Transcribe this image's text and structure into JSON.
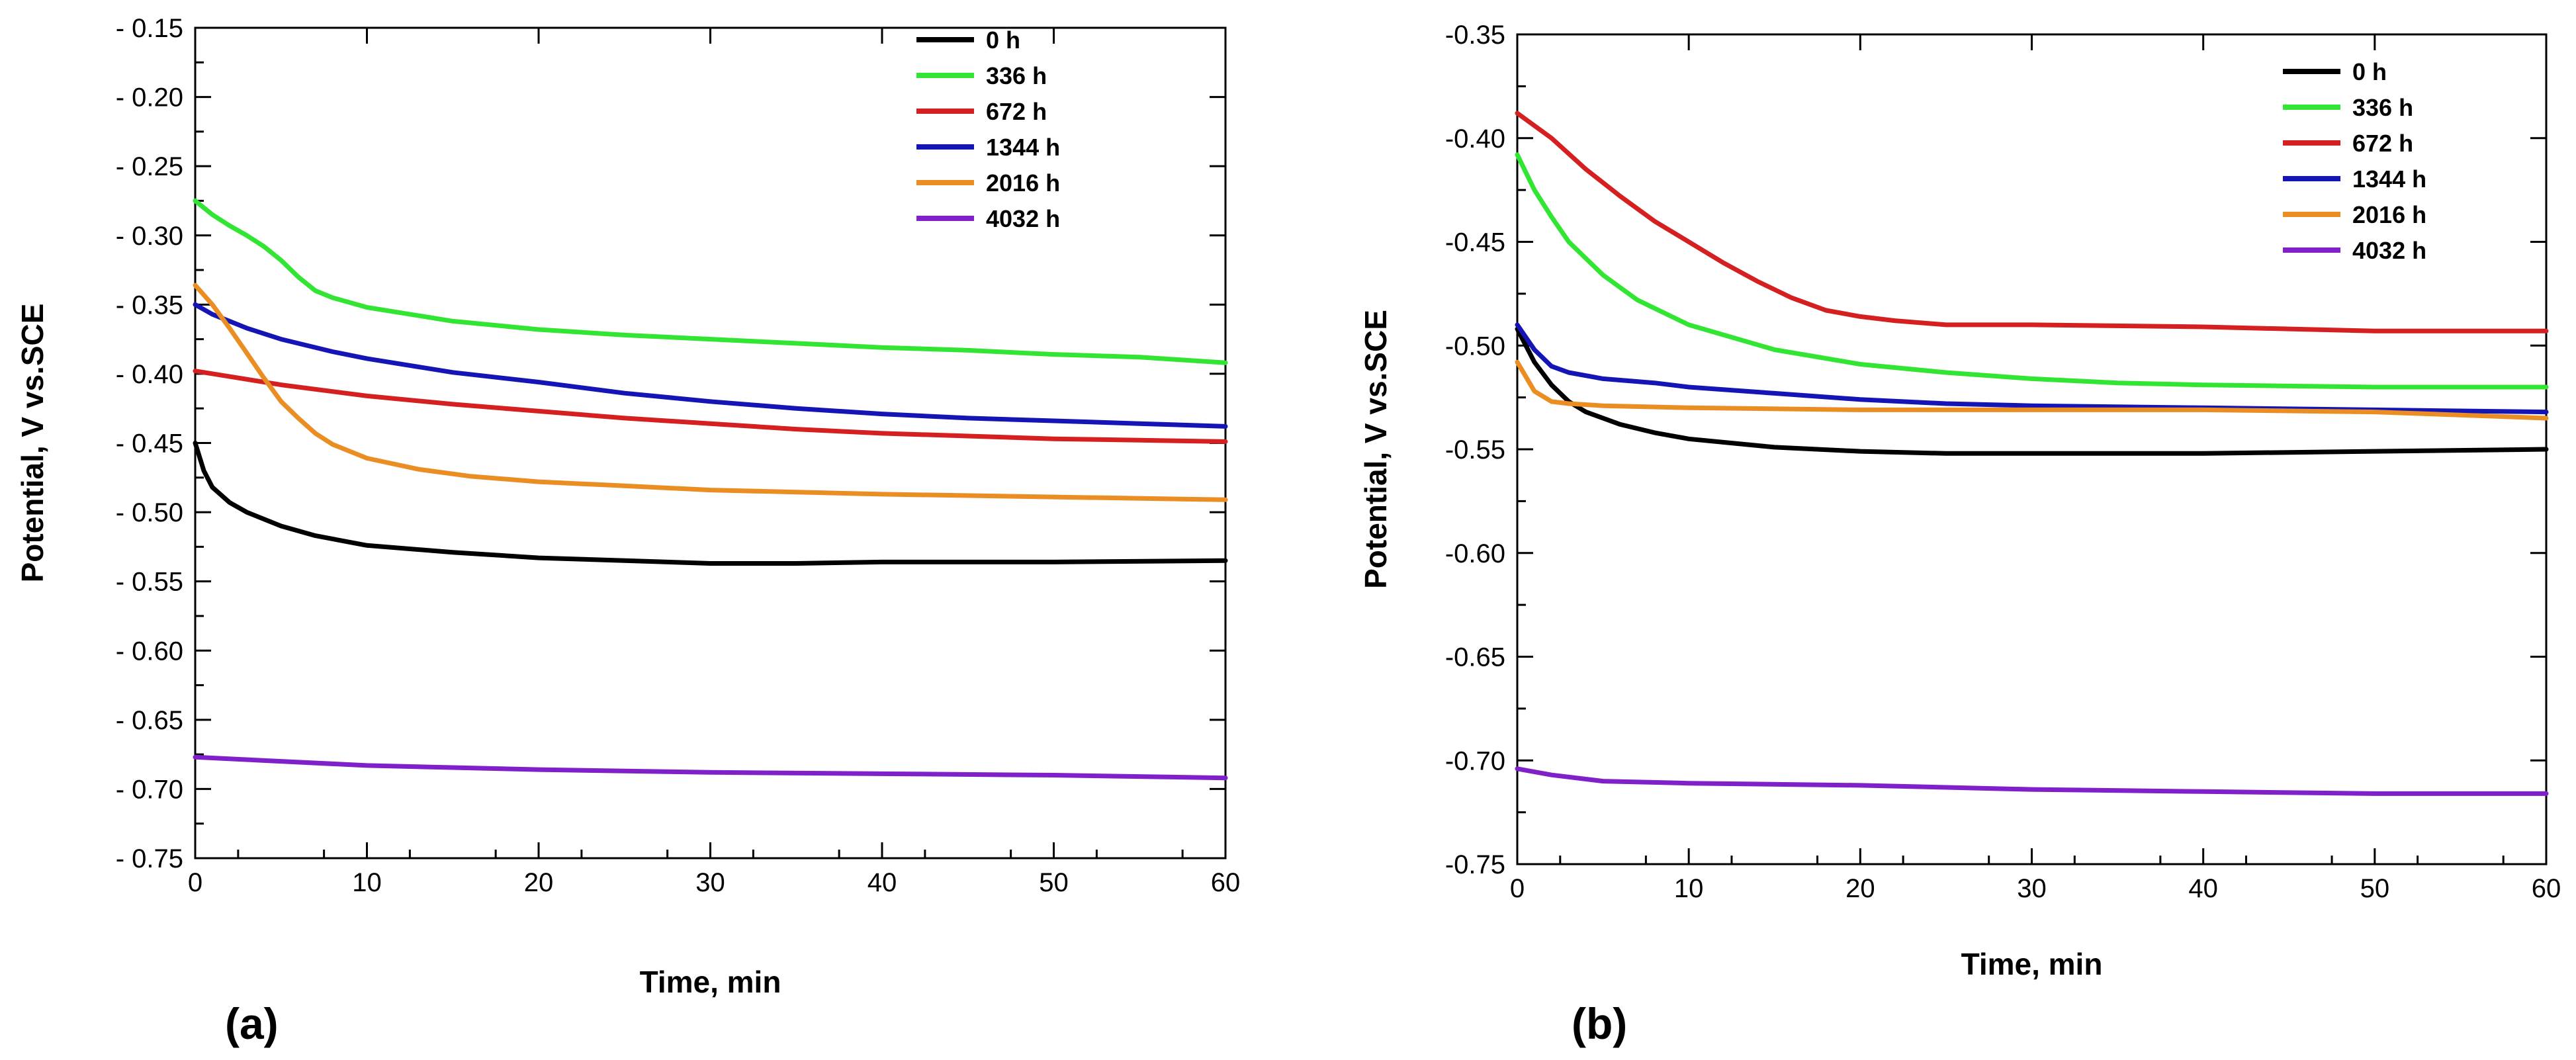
{
  "chart_data": [
    {
      "type": "line",
      "panel_label": "(a)",
      "xlabel": "Time, min",
      "ylabel": "Potential, V vs.SCE",
      "xlim": [
        0,
        60
      ],
      "ylim": [
        -0.75,
        -0.15
      ],
      "x_ticks": [
        "0",
        "10",
        "20",
        "30",
        "40",
        "50",
        "60"
      ],
      "y_ticks": [
        "- 0.15",
        "- 0.20",
        "- 0.25",
        "- 0.30",
        "- 0.35",
        "- 0.40",
        "- 0.45",
        "- 0.50",
        "- 0.55",
        "- 0.60",
        "- 0.65",
        "- 0.70",
        "- 0.75"
      ],
      "legend_position": "top-right",
      "series": [
        {
          "name": "0 h",
          "color": "#000000",
          "points": [
            [
              0,
              -0.45
            ],
            [
              0.5,
              -0.47
            ],
            [
              1,
              -0.482
            ],
            [
              2,
              -0.493
            ],
            [
              3,
              -0.5
            ],
            [
              5,
              -0.51
            ],
            [
              7,
              -0.517
            ],
            [
              10,
              -0.524
            ],
            [
              15,
              -0.529
            ],
            [
              20,
              -0.533
            ],
            [
              25,
              -0.535
            ],
            [
              30,
              -0.537
            ],
            [
              35,
              -0.537
            ],
            [
              40,
              -0.536
            ],
            [
              50,
              -0.536
            ],
            [
              60,
              -0.535
            ]
          ]
        },
        {
          "name": "336 h",
          "color": "#33e533",
          "points": [
            [
              0,
              -0.275
            ],
            [
              1,
              -0.285
            ],
            [
              2,
              -0.293
            ],
            [
              3,
              -0.3
            ],
            [
              4,
              -0.308
            ],
            [
              5,
              -0.318
            ],
            [
              6,
              -0.33
            ],
            [
              7,
              -0.34
            ],
            [
              8,
              -0.345
            ],
            [
              10,
              -0.352
            ],
            [
              15,
              -0.362
            ],
            [
              20,
              -0.368
            ],
            [
              25,
              -0.372
            ],
            [
              30,
              -0.375
            ],
            [
              35,
              -0.378
            ],
            [
              40,
              -0.381
            ],
            [
              45,
              -0.383
            ],
            [
              50,
              -0.386
            ],
            [
              55,
              -0.388
            ],
            [
              60,
              -0.392
            ]
          ]
        },
        {
          "name": "672 h",
          "color": "#d42020",
          "points": [
            [
              0,
              -0.398
            ],
            [
              5,
              -0.408
            ],
            [
              10,
              -0.416
            ],
            [
              15,
              -0.422
            ],
            [
              20,
              -0.427
            ],
            [
              25,
              -0.432
            ],
            [
              30,
              -0.436
            ],
            [
              35,
              -0.44
            ],
            [
              40,
              -0.443
            ],
            [
              45,
              -0.445
            ],
            [
              50,
              -0.447
            ],
            [
              55,
              -0.448
            ],
            [
              60,
              -0.449
            ]
          ]
        },
        {
          "name": "1344 h",
          "color": "#1515b5",
          "points": [
            [
              0,
              -0.35
            ],
            [
              1,
              -0.357
            ],
            [
              3,
              -0.367
            ],
            [
              5,
              -0.375
            ],
            [
              8,
              -0.384
            ],
            [
              10,
              -0.389
            ],
            [
              15,
              -0.399
            ],
            [
              20,
              -0.406
            ],
            [
              25,
              -0.414
            ],
            [
              30,
              -0.42
            ],
            [
              35,
              -0.425
            ],
            [
              40,
              -0.429
            ],
            [
              45,
              -0.432
            ],
            [
              50,
              -0.434
            ],
            [
              55,
              -0.436
            ],
            [
              60,
              -0.438
            ]
          ]
        },
        {
          "name": "2016 h",
          "color": "#ea8e24",
          "points": [
            [
              0,
              -0.336
            ],
            [
              1,
              -0.35
            ],
            [
              2,
              -0.367
            ],
            [
              3,
              -0.385
            ],
            [
              4,
              -0.403
            ],
            [
              5,
              -0.42
            ],
            [
              6,
              -0.432
            ],
            [
              7,
              -0.443
            ],
            [
              8,
              -0.451
            ],
            [
              10,
              -0.461
            ],
            [
              13,
              -0.469
            ],
            [
              16,
              -0.474
            ],
            [
              20,
              -0.478
            ],
            [
              25,
              -0.481
            ],
            [
              30,
              -0.484
            ],
            [
              40,
              -0.487
            ],
            [
              50,
              -0.489
            ],
            [
              60,
              -0.491
            ]
          ]
        },
        {
          "name": "4032 h",
          "color": "#8020c8",
          "points": [
            [
              0,
              -0.677
            ],
            [
              5,
              -0.68
            ],
            [
              10,
              -0.683
            ],
            [
              20,
              -0.686
            ],
            [
              30,
              -0.688
            ],
            [
              40,
              -0.689
            ],
            [
              50,
              -0.69
            ],
            [
              60,
              -0.692
            ]
          ]
        }
      ]
    },
    {
      "type": "line",
      "panel_label": "(b)",
      "xlabel": "Time, min",
      "ylabel": "Potential, V vs.SCE",
      "xlim": [
        0,
        60
      ],
      "ylim": [
        -0.75,
        -0.35
      ],
      "x_ticks": [
        "0",
        "10",
        "20",
        "30",
        "40",
        "50",
        "60"
      ],
      "y_ticks": [
        "-0.35",
        "-0.40",
        "-0.45",
        "-0.50",
        "-0.55",
        "-0.60",
        "-0.65",
        "-0.70",
        "-0.75"
      ],
      "legend_position": "top-right",
      "series": [
        {
          "name": "0 h",
          "color": "#000000",
          "points": [
            [
              0,
              -0.492
            ],
            [
              1,
              -0.508
            ],
            [
              2,
              -0.519
            ],
            [
              3,
              -0.527
            ],
            [
              4,
              -0.532
            ],
            [
              6,
              -0.538
            ],
            [
              8,
              -0.542
            ],
            [
              10,
              -0.545
            ],
            [
              15,
              -0.549
            ],
            [
              20,
              -0.551
            ],
            [
              25,
              -0.552
            ],
            [
              30,
              -0.552
            ],
            [
              40,
              -0.552
            ],
            [
              50,
              -0.551
            ],
            [
              60,
              -0.55
            ]
          ]
        },
        {
          "name": "336 h",
          "color": "#33e533",
          "points": [
            [
              0,
              -0.408
            ],
            [
              1,
              -0.425
            ],
            [
              2,
              -0.438
            ],
            [
              3,
              -0.45
            ],
            [
              5,
              -0.466
            ],
            [
              7,
              -0.478
            ],
            [
              10,
              -0.49
            ],
            [
              15,
              -0.502
            ],
            [
              20,
              -0.509
            ],
            [
              25,
              -0.513
            ],
            [
              30,
              -0.516
            ],
            [
              35,
              -0.518
            ],
            [
              40,
              -0.519
            ],
            [
              50,
              -0.52
            ],
            [
              60,
              -0.52
            ]
          ]
        },
        {
          "name": "672 h",
          "color": "#d42020",
          "points": [
            [
              0,
              -0.388
            ],
            [
              2,
              -0.4
            ],
            [
              4,
              -0.415
            ],
            [
              6,
              -0.428
            ],
            [
              8,
              -0.44
            ],
            [
              10,
              -0.45
            ],
            [
              12,
              -0.46
            ],
            [
              14,
              -0.469
            ],
            [
              16,
              -0.477
            ],
            [
              18,
              -0.483
            ],
            [
              20,
              -0.486
            ],
            [
              22,
              -0.488
            ],
            [
              25,
              -0.49
            ],
            [
              30,
              -0.49
            ],
            [
              40,
              -0.491
            ],
            [
              50,
              -0.493
            ],
            [
              60,
              -0.493
            ]
          ]
        },
        {
          "name": "1344 h",
          "color": "#1515b5",
          "points": [
            [
              0,
              -0.49
            ],
            [
              1,
              -0.502
            ],
            [
              2,
              -0.51
            ],
            [
              3,
              -0.513
            ],
            [
              5,
              -0.516
            ],
            [
              8,
              -0.518
            ],
            [
              10,
              -0.52
            ],
            [
              15,
              -0.523
            ],
            [
              20,
              -0.526
            ],
            [
              25,
              -0.528
            ],
            [
              30,
              -0.529
            ],
            [
              40,
              -0.53
            ],
            [
              50,
              -0.531
            ],
            [
              60,
              -0.532
            ]
          ]
        },
        {
          "name": "2016 h",
          "color": "#ea8e24",
          "points": [
            [
              0,
              -0.508
            ],
            [
              1,
              -0.522
            ],
            [
              2,
              -0.527
            ],
            [
              3,
              -0.528
            ],
            [
              5,
              -0.529
            ],
            [
              10,
              -0.53
            ],
            [
              20,
              -0.531
            ],
            [
              30,
              -0.531
            ],
            [
              40,
              -0.531
            ],
            [
              50,
              -0.532
            ],
            [
              60,
              -0.535
            ]
          ]
        },
        {
          "name": "4032 h",
          "color": "#8020c8",
          "points": [
            [
              0,
              -0.704
            ],
            [
              2,
              -0.707
            ],
            [
              5,
              -0.71
            ],
            [
              10,
              -0.711
            ],
            [
              20,
              -0.712
            ],
            [
              30,
              -0.714
            ],
            [
              40,
              -0.715
            ],
            [
              50,
              -0.716
            ],
            [
              60,
              -0.716
            ]
          ]
        }
      ]
    }
  ]
}
